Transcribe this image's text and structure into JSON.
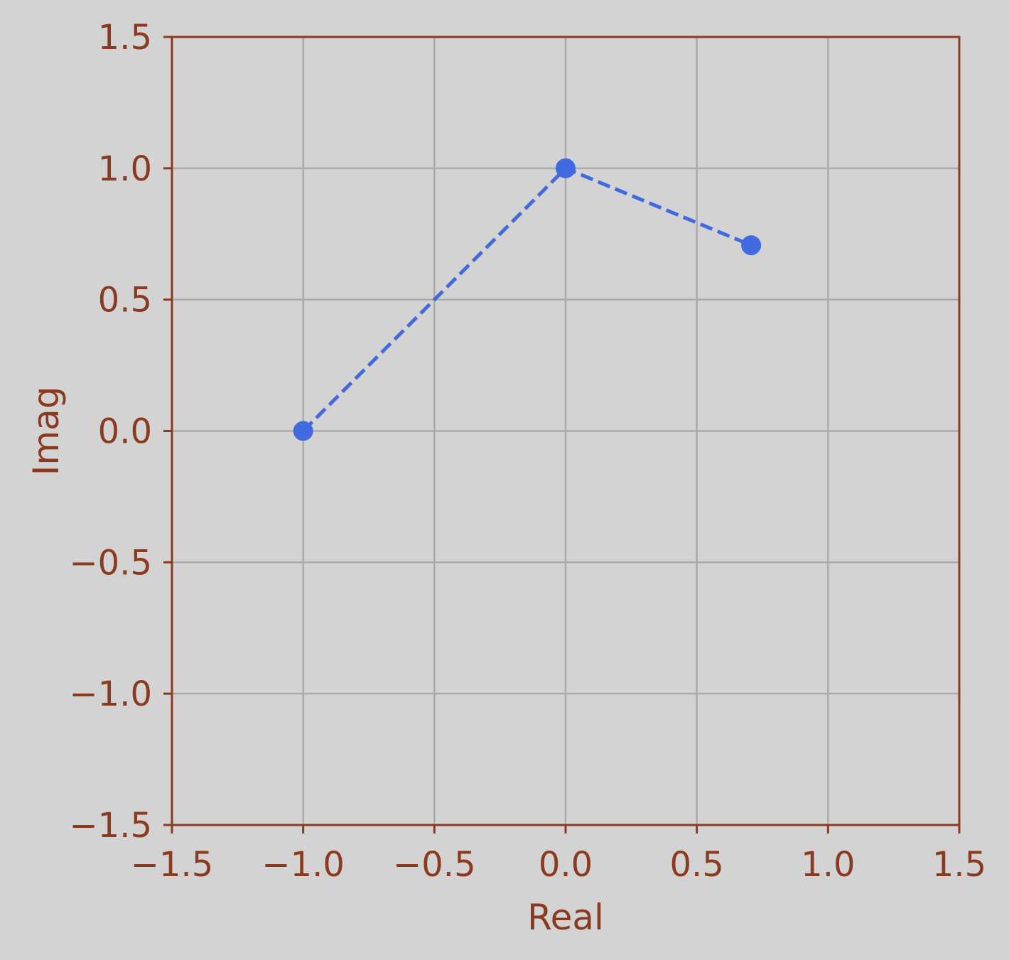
{
  "chart_data": {
    "type": "line",
    "title": "",
    "xlabel": "Real",
    "ylabel": "Imag",
    "xlim": [
      -1.5,
      1.5
    ],
    "ylim": [
      -1.5,
      1.5
    ],
    "x_ticks": [
      -1.5,
      -1.0,
      -0.5,
      0.0,
      0.5,
      1.0,
      1.5
    ],
    "y_ticks": [
      -1.5,
      -1.0,
      -0.5,
      0.0,
      0.5,
      1.0,
      1.5
    ],
    "x_tick_labels": [
      "−1.5",
      "−1.0",
      "−0.5",
      "0.0",
      "0.5",
      "1.0",
      "1.5"
    ],
    "y_tick_labels": [
      "−1.5",
      "−1.0",
      "−0.5",
      "0.0",
      "0.5",
      "1.0",
      "1.5"
    ],
    "grid": true,
    "series": [
      {
        "points": [
          {
            "x": -1.0,
            "y": 0.0
          },
          {
            "x": 0.0,
            "y": 1.0
          },
          {
            "x": 0.707,
            "y": 0.707
          }
        ],
        "line_style": "dashed",
        "marker": "circle",
        "color": "#4169e1"
      }
    ]
  },
  "colors": {
    "background": "#d3d3d3",
    "axis": "#8b3a1f",
    "grid": "#ababab",
    "series": "#4169e1"
  }
}
